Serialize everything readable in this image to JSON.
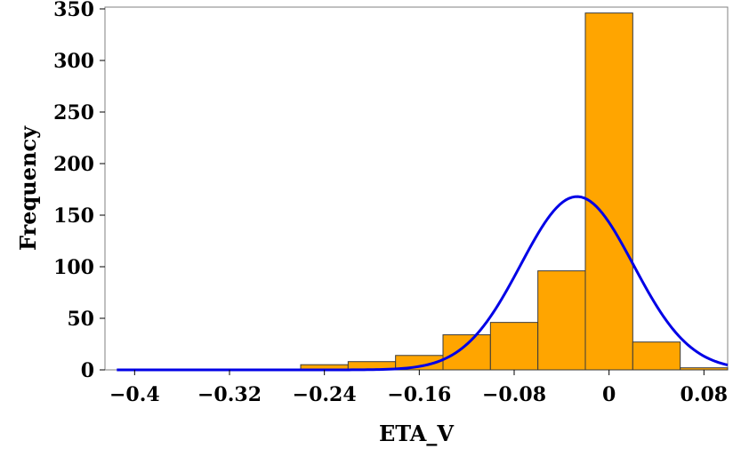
{
  "chart_data": {
    "type": "bar",
    "subtype": "histogram",
    "xlabel": "ETA_V",
    "ylabel": "Frequency",
    "xlim": [
      -0.425,
      0.1
    ],
    "ylim": [
      0,
      350
    ],
    "x_ticks": [
      -0.4,
      -0.32,
      -0.24,
      -0.16,
      -0.08,
      0,
      0.08
    ],
    "x_tick_labels": [
      "−0.4",
      "−0.32",
      "−0.24",
      "−0.16",
      "−0.08",
      "0",
      "0.08"
    ],
    "y_ticks": [
      0,
      50,
      100,
      150,
      200,
      250,
      300,
      350
    ],
    "y_tick_labels": [
      "0",
      "50",
      "100",
      "150",
      "200",
      "250",
      "300",
      "350"
    ],
    "bins": [
      {
        "x0": -0.26,
        "x1": -0.22,
        "count": 5
      },
      {
        "x0": -0.22,
        "x1": -0.18,
        "count": 8
      },
      {
        "x0": -0.18,
        "x1": -0.14,
        "count": 14
      },
      {
        "x0": -0.14,
        "x1": -0.1,
        "count": 34
      },
      {
        "x0": -0.1,
        "x1": -0.06,
        "count": 46
      },
      {
        "x0": -0.06,
        "x1": -0.02,
        "count": 96
      },
      {
        "x0": -0.02,
        "x1": 0.02,
        "count": 346
      },
      {
        "x0": 0.02,
        "x1": 0.06,
        "count": 27
      },
      {
        "x0": 0.06,
        "x1": 0.1,
        "count": 2
      }
    ],
    "normal_curve": {
      "mean": -0.027,
      "sd": 0.0475,
      "peak": 168,
      "x_range": [
        -0.415,
        0.1
      ]
    },
    "grid": false,
    "colors": {
      "bar_fill": "#FFA500",
      "bar_stroke": "#3a3a3a",
      "curve": "#0000E6",
      "frame": "#808080"
    }
  }
}
